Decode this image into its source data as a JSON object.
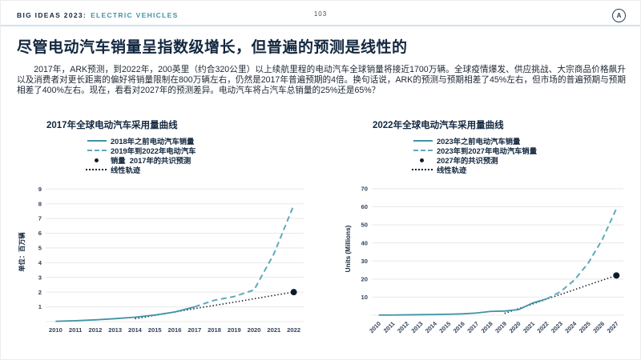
{
  "header": {
    "brand": "BIG IDEAS 2023:",
    "topic": "ELECTRIC VEHICLES",
    "page_number": "103",
    "logo_letter": "A"
  },
  "title": "尽管电动汽车销量呈指数级增长，但普遍的预测是线性的",
  "body": {
    "text": "2017年，ARK预测，到2022年，200英里（约合320公里）以上续航里程的电动汽车全球销量将接近1700万辆。全球疫情爆发、供应挑战、大宗商品价格飙升以及消费者对更长距离的偏好将销量限制在800万辆左右，仍然是2017年普遍预期的4倍。换句话说，ARK的预测与预期相差了45%左右，但市场的普遍预期与预期相差了400%左右。现在，看看对2027年的预测差异。电动汽车将占汽车总销量的25%还是65%？"
  },
  "colors": {
    "navy": "#13273f",
    "teal": "#3f93a6",
    "teal_light": "#5fa9bd",
    "ink": "#0e1c2e",
    "grid": "#e8e8e8",
    "tick": "#31425a",
    "header_rule": "#cfe3ed"
  },
  "chart_data": [
    {
      "type": "line",
      "title": "2017年全球电动汽车采用量曲线",
      "ylabel": "单位：百万辆",
      "xlabel": "",
      "x": [
        2010,
        2011,
        2012,
        2013,
        2014,
        2015,
        2016,
        2017,
        2018,
        2019,
        2020,
        2021,
        2022
      ],
      "yticks": [
        1,
        2,
        3,
        4,
        5,
        6,
        7,
        8,
        9
      ],
      "ylim": [
        0,
        9
      ],
      "grid": true,
      "rotate_x_labels": false,
      "legend_position": "top",
      "legend": [
        {
          "label": "2018年之前电动汽车销量",
          "marker": "solid-line"
        },
        {
          "label": "2019年到2022年电动汽车",
          "marker": "dashed-line"
        },
        {
          "label": "销量  2017年的共识预测",
          "marker": "dot"
        },
        {
          "label": "线性轨迹",
          "marker": "dotted-line"
        }
      ],
      "series": [
        {
          "name": "2018年之前电动汽车销量",
          "style": "solid",
          "x": [
            2010,
            2011,
            2012,
            2013,
            2014,
            2015,
            2016,
            2017
          ],
          "values": [
            0.02,
            0.06,
            0.12,
            0.2,
            0.3,
            0.45,
            0.65,
            1.0
          ]
        },
        {
          "name": "2019年到2022年电动汽车销量",
          "style": "dashed",
          "x": [
            2017,
            2018,
            2019,
            2020,
            2021,
            2022
          ],
          "values": [
            1.0,
            1.45,
            1.7,
            2.15,
            4.6,
            7.9
          ]
        },
        {
          "name": "线性轨迹",
          "style": "dotted",
          "x": [
            2014,
            2015,
            2016,
            2017,
            2018,
            2019,
            2020,
            2021,
            2022
          ],
          "values": [
            0.2,
            0.42,
            0.65,
            0.88,
            1.1,
            1.32,
            1.55,
            1.78,
            2.0
          ]
        },
        {
          "name": "2017年的共识预测",
          "style": "point",
          "x": [
            2022
          ],
          "values": [
            2.0
          ]
        }
      ]
    },
    {
      "type": "line",
      "title": "2022年全球电动汽车采用量曲线",
      "ylabel": "Units (Millions)",
      "xlabel": "",
      "x": [
        2010,
        2011,
        2012,
        2013,
        2014,
        2015,
        2016,
        2017,
        2018,
        2019,
        2020,
        2021,
        2022,
        2023,
        2024,
        2025,
        2026,
        2027
      ],
      "yticks": [
        10,
        20,
        30,
        40,
        50,
        60,
        70
      ],
      "ylim": [
        0,
        70
      ],
      "grid": true,
      "rotate_x_labels": true,
      "legend_position": "top",
      "legend": [
        {
          "label": "2023年之前电动汽车销量",
          "marker": "solid-line"
        },
        {
          "label": "2023年到2027年电动汽车销量",
          "marker": "dashed-line"
        },
        {
          "label": "2027年的共识预测",
          "marker": "dot"
        },
        {
          "label": "线性轨迹",
          "marker": "dotted-line"
        }
      ],
      "series": [
        {
          "name": "2023年之前电动汽车销量",
          "style": "solid",
          "x": [
            2010,
            2011,
            2012,
            2013,
            2014,
            2015,
            2016,
            2017,
            2018,
            2019,
            2020,
            2021,
            2022
          ],
          "values": [
            0.05,
            0.1,
            0.2,
            0.3,
            0.4,
            0.55,
            0.75,
            1.2,
            2.1,
            2.3,
            3.1,
            6.7,
            9.0
          ]
        },
        {
          "name": "2023年到2027年电动汽车销量",
          "style": "dashed",
          "x": [
            2022,
            2023,
            2024,
            2025,
            2026,
            2027
          ],
          "values": [
            9.0,
            13,
            19.5,
            29,
            42,
            59
          ]
        },
        {
          "name": "线性轨迹",
          "style": "dotted",
          "x": [
            2019,
            2020,
            2021,
            2022,
            2023,
            2024,
            2025,
            2026,
            2027
          ],
          "values": [
            1.0,
            3.6,
            6.2,
            8.9,
            11.5,
            14.1,
            16.8,
            19.4,
            22.0
          ]
        },
        {
          "name": "2027年的共识预测",
          "style": "point",
          "x": [
            2027
          ],
          "values": [
            22.0
          ]
        }
      ]
    }
  ]
}
